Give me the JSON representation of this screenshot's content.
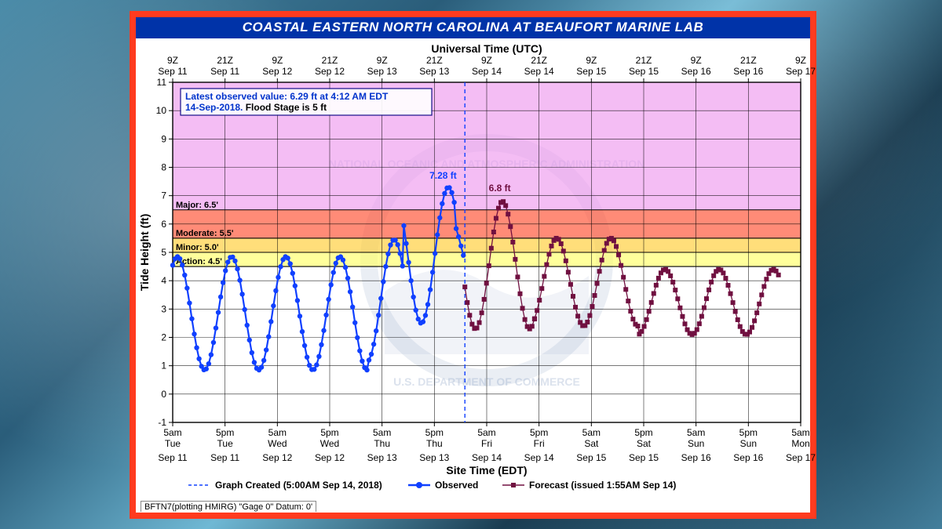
{
  "title": "COASTAL EASTERN NORTH CAROLINA AT BEAUFORT MARINE LAB",
  "title_fontsize": 17,
  "top_axis_title": "Universal Time (UTC)",
  "bottom_axis_title": "Site Time (EDT)",
  "y_axis_title": "Tide Height (ft)",
  "status_box": {
    "line1": "Latest observed value: 6.29 ft at 4:12 AM EDT",
    "line2_a": "14-Sep-2018.",
    "line2_b": " Flood Stage is 5 ft",
    "border_color": "#000080",
    "text_color_a": "#0033cc",
    "text_color_b": "#000000",
    "fontsize": 12
  },
  "footer": "BFTN7(plotting HMIRG) \"Gage 0\" Datum: 0'",
  "legend": {
    "created": "Graph Created (5:00AM Sep 14, 2018)",
    "observed": "Observed",
    "forecast": "Forecast (issued 1:55AM Sep 14)",
    "created_marker": "dashed",
    "observed_color": "#1040ff",
    "forecast_color": "#701040",
    "fontsize": 12
  },
  "chart": {
    "type": "line",
    "plot_bg": "#ffffff",
    "grid_color": "#000000",
    "grid_width": 0.6,
    "ylim": [
      -1,
      11
    ],
    "ytick_step": 1,
    "x_hours_range": [
      5,
      149
    ],
    "now_line_hour": 72,
    "now_line_color": "#1040ff",
    "flood_zones": [
      {
        "label": "Action: 4.5'",
        "from": 4.5,
        "to": 5.0,
        "color": "#ffff66"
      },
      {
        "label": "Minor: 5.0'",
        "from": 5.0,
        "to": 5.5,
        "color": "#ffcc33"
      },
      {
        "label": "Moderate: 5.5'",
        "from": 5.5,
        "to": 6.5,
        "color": "#ff4d2e"
      },
      {
        "label": "Major: 6.5'",
        "from": 6.5,
        "to": 11.0,
        "color": "#ee99ee"
      }
    ],
    "zone_label_fontsize": 11,
    "annotations": [
      {
        "text": "7.28 ft",
        "hour": 67,
        "value": 7.6,
        "color": "#1040ff"
      },
      {
        "text": "6.8 ft",
        "hour": 80,
        "value": 7.15,
        "color": "#701040"
      }
    ],
    "x_ticks_top": [
      {
        "h": 5,
        "l1": "9Z",
        "l2": "Sep 11"
      },
      {
        "h": 17,
        "l1": "21Z",
        "l2": "Sep 11"
      },
      {
        "h": 29,
        "l1": "9Z",
        "l2": "Sep 12"
      },
      {
        "h": 41,
        "l1": "21Z",
        "l2": "Sep 12"
      },
      {
        "h": 53,
        "l1": "9Z",
        "l2": "Sep 13"
      },
      {
        "h": 65,
        "l1": "21Z",
        "l2": "Sep 13"
      },
      {
        "h": 77,
        "l1": "9Z",
        "l2": "Sep 14"
      },
      {
        "h": 89,
        "l1": "21Z",
        "l2": "Sep 14"
      },
      {
        "h": 101,
        "l1": "9Z",
        "l2": "Sep 15"
      },
      {
        "h": 113,
        "l1": "21Z",
        "l2": "Sep 15"
      },
      {
        "h": 125,
        "l1": "9Z",
        "l2": "Sep 16"
      },
      {
        "h": 137,
        "l1": "21Z",
        "l2": "Sep 16"
      },
      {
        "h": 149,
        "l1": "9Z",
        "l2": "Sep 17"
      }
    ],
    "x_ticks_bottom": [
      {
        "h": 5,
        "l1": "5am",
        "l2": "Tue",
        "l3": "Sep 11"
      },
      {
        "h": 17,
        "l1": "5pm",
        "l2": "Tue",
        "l3": "Sep 11"
      },
      {
        "h": 29,
        "l1": "5am",
        "l2": "Wed",
        "l3": "Sep 12"
      },
      {
        "h": 41,
        "l1": "5pm",
        "l2": "Wed",
        "l3": "Sep 12"
      },
      {
        "h": 53,
        "l1": "5am",
        "l2": "Thu",
        "l3": "Sep 13"
      },
      {
        "h": 65,
        "l1": "5pm",
        "l2": "Thu",
        "l3": "Sep 13"
      },
      {
        "h": 77,
        "l1": "5am",
        "l2": "Fri",
        "l3": "Sep 14"
      },
      {
        "h": 89,
        "l1": "5pm",
        "l2": "Fri",
        "l3": "Sep 14"
      },
      {
        "h": 101,
        "l1": "5am",
        "l2": "Sat",
        "l3": "Sep 15"
      },
      {
        "h": 113,
        "l1": "5pm",
        "l2": "Sat",
        "l3": "Sep 15"
      },
      {
        "h": 125,
        "l1": "5am",
        "l2": "Sun",
        "l3": "Sep 16"
      },
      {
        "h": 137,
        "l1": "5pm",
        "l2": "Sun",
        "l3": "Sep 16"
      },
      {
        "h": 149,
        "l1": "5am",
        "l2": "Mon",
        "l3": "Sep 17"
      }
    ],
    "series": {
      "observed": {
        "color": "#1040ff",
        "line_width": 2.2,
        "marker": "circle",
        "marker_size": 3.2,
        "tide": {
          "period_h": 12.42,
          "phase_h": 3.0
        },
        "segments": [
          {
            "h0": 5,
            "h1": 50,
            "base": 2.85,
            "amp": 2.0
          },
          {
            "h0": 50,
            "h1": 58,
            "base": 3.3,
            "amp": 2.15
          },
          {
            "h0": 58,
            "h1": 70,
            "base": 4.9,
            "amp": 2.4
          },
          {
            "h0": 70,
            "h1": 72,
            "base": 5.1,
            "amp": 1.2
          }
        ]
      },
      "forecast": {
        "color": "#701040",
        "line_width": 1.3,
        "marker": "square",
        "marker_size": 3.0,
        "tide": {
          "period_h": 12.42,
          "phase_h": 3.0
        },
        "segments": [
          {
            "h0": 72,
            "h1": 88,
            "base": 4.55,
            "amp": 2.25
          },
          {
            "h0": 88,
            "h1": 112,
            "base": 3.95,
            "amp": 1.55
          },
          {
            "h0": 112,
            "h1": 144,
            "base": 3.25,
            "amp": 1.15
          }
        ]
      }
    }
  }
}
